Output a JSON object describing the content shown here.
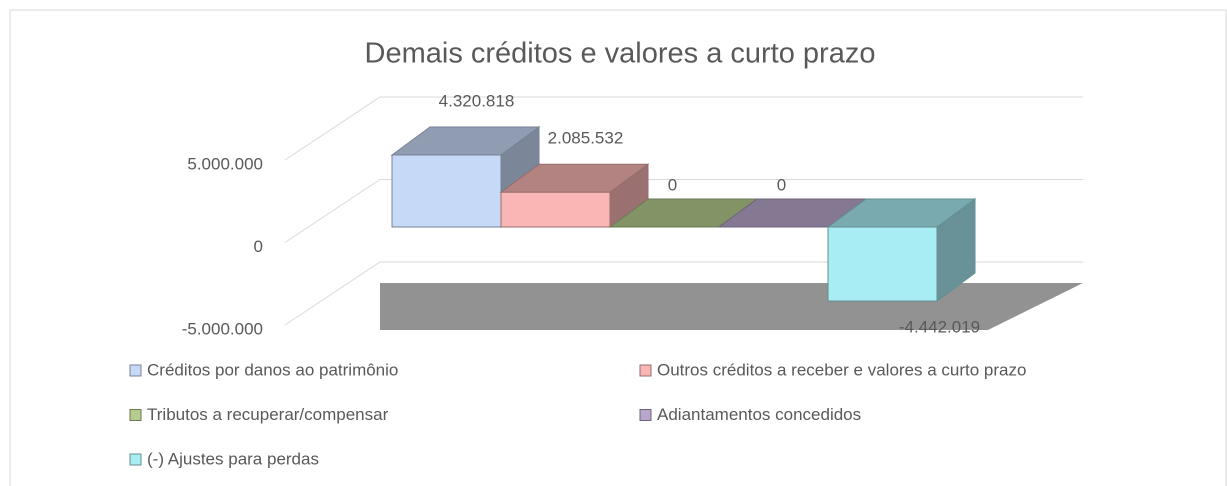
{
  "chart_data": {
    "type": "bar3d",
    "title": "Demais créditos e valores a curto prazo",
    "series": [
      {
        "name": "Créditos por danos ao patrimônio",
        "color": "#c6d9f7",
        "values": [
          4320818
        ],
        "value_labels": [
          "4.320.818"
        ]
      },
      {
        "name": "Outros créditos a receber e valores a curto prazo",
        "color": "#f9b6b4",
        "values": [
          2085532
        ],
        "value_labels": [
          "2.085.532"
        ]
      },
      {
        "name": "Tributos a recuperar/compensar",
        "color": "#b5cc8e",
        "values": [
          0
        ],
        "value_labels": [
          "0"
        ]
      },
      {
        "name": "Adiantamentos concedidos",
        "color": "#b9a6cc",
        "values": [
          0
        ],
        "value_labels": [
          "0"
        ]
      },
      {
        "name": "(-) Ajustes para perdas",
        "color": "#a8ecf4",
        "values": [
          -4442019
        ],
        "value_labels": [
          "-4.442.019"
        ]
      }
    ],
    "ylim": [
      -5000000,
      5000000
    ],
    "yticks": [
      {
        "value": -5000000,
        "label": "-5.000.000"
      },
      0,
      {
        "value": 5000000,
        "label": "5.000.000"
      }
    ],
    "grid": true
  }
}
